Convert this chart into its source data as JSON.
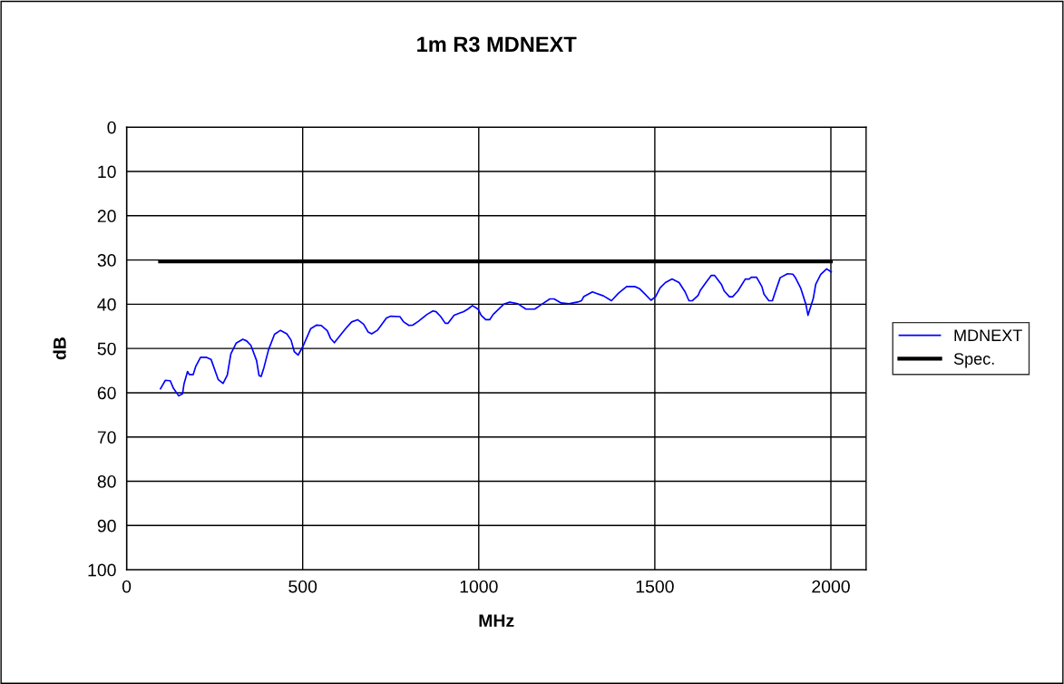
{
  "chart_data": {
    "type": "line",
    "title": "1m R3 MDNEXT",
    "xlabel": "MHz",
    "ylabel": "dB",
    "xlim": [
      0,
      2100
    ],
    "xticks": [
      0,
      500,
      1000,
      1500,
      2000
    ],
    "ylim": [
      100,
      0
    ],
    "yticks": [
      0,
      10,
      20,
      30,
      40,
      50,
      60,
      70,
      80,
      90,
      100
    ],
    "grid": true,
    "legend": "right",
    "marker": "none",
    "line_style": "solid",
    "series": [
      {
        "name": "MDNEXT",
        "color": "#0000ff",
        "x": [
          96,
          110,
          124,
          133,
          148,
          159,
          163,
          173,
          178,
          189,
          196,
          210,
          227,
          240,
          260,
          274,
          286,
          296,
          311,
          330,
          341,
          353,
          369,
          376,
          382,
          390,
          403,
          420,
          437,
          455,
          467,
          476,
          487,
          502,
          523,
          540,
          553,
          570,
          579,
          590,
          609,
          622,
          639,
          656,
          673,
          686,
          696,
          712,
          738,
          750,
          776,
          787,
          802,
          813,
          828,
          853,
          870,
          879,
          892,
          905,
          913,
          930,
          956,
          969,
          982,
          998,
          1007,
          1020,
          1031,
          1041,
          1071,
          1088,
          1111,
          1134,
          1159,
          1183,
          1202,
          1214,
          1234,
          1256,
          1281,
          1292,
          1298,
          1323,
          1333,
          1354,
          1377,
          1397,
          1420,
          1443,
          1457,
          1472,
          1489,
          1502,
          1515,
          1530,
          1549,
          1569,
          1586,
          1597,
          1607,
          1623,
          1629,
          1646,
          1660,
          1670,
          1689,
          1697,
          1712,
          1721,
          1736,
          1757,
          1768,
          1774,
          1789,
          1804,
          1810,
          1824,
          1834,
          1840,
          1856,
          1877,
          1892,
          1900,
          1914,
          1929,
          1935,
          1950,
          1957,
          1971,
          1988,
          2001
        ],
        "values": [
          59.1,
          57.2,
          57.3,
          59,
          60.7,
          60.2,
          58,
          55.2,
          55.9,
          55.9,
          54.1,
          52,
          52,
          52.5,
          57,
          57.9,
          56,
          51.2,
          48.8,
          47.9,
          48.3,
          49.3,
          52.7,
          56.1,
          56.3,
          54.3,
          50.3,
          46.8,
          45.9,
          46.7,
          48.1,
          50.7,
          51.5,
          49.3,
          45.5,
          44.7,
          44.8,
          46,
          47.7,
          48.7,
          46.8,
          45.5,
          44,
          43.5,
          44.5,
          46.3,
          46.7,
          45.9,
          43.1,
          42.7,
          42.8,
          44,
          44.8,
          44.7,
          43.9,
          42.3,
          41.5,
          41.7,
          42.8,
          44.3,
          44.3,
          42.5,
          41.7,
          41.1,
          40.3,
          41.1,
          42.5,
          43.5,
          43.5,
          42.3,
          40,
          39.5,
          39.9,
          41.1,
          41.1,
          39.8,
          38.8,
          38.8,
          39.7,
          39.9,
          39.5,
          39.2,
          38.3,
          37.2,
          37.5,
          38.1,
          39.2,
          37.5,
          36,
          36,
          36.5,
          37.7,
          39.1,
          38.3,
          36.3,
          35.1,
          34.3,
          35.1,
          37.2,
          39.2,
          39.2,
          38,
          36.9,
          35,
          33.5,
          33.5,
          35.5,
          37,
          38.3,
          38.3,
          37,
          34.3,
          34.3,
          33.9,
          33.9,
          36,
          37.7,
          39.2,
          39.2,
          37.7,
          34,
          33.1,
          33.2,
          34.1,
          36.3,
          40,
          42.5,
          38.7,
          35.5,
          33.3,
          32,
          32.7
        ]
      },
      {
        "name": "Spec.",
        "color": "#000000",
        "x": [
          95,
          2000
        ],
        "values": [
          30.3,
          30.3
        ]
      }
    ]
  }
}
